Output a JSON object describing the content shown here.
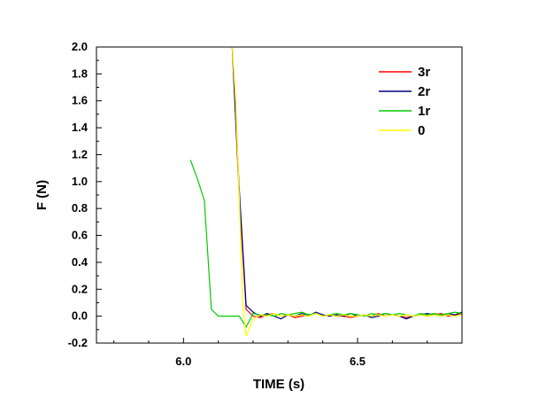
{
  "chart_data": {
    "type": "line",
    "title": "",
    "xlabel": "TIME (s)",
    "ylabel": "F (N)",
    "xlim": [
      5.75,
      6.8
    ],
    "ylim": [
      -0.2,
      2.0
    ],
    "xticks": [
      {
        "value": 6.0,
        "label": "6.0"
      },
      {
        "value": 6.5,
        "label": "6.5"
      }
    ],
    "xminor": [
      5.8,
      5.9,
      6.1,
      6.2,
      6.3,
      6.4,
      6.6,
      6.7
    ],
    "yticks": [
      {
        "value": -0.2,
        "label": "-0.2"
      },
      {
        "value": 0.0,
        "label": "0.0"
      },
      {
        "value": 0.2,
        "label": "0.2"
      },
      {
        "value": 0.4,
        "label": "0.4"
      },
      {
        "value": 0.6,
        "label": "0.6"
      },
      {
        "value": 0.8,
        "label": "0.8"
      },
      {
        "value": 1.0,
        "label": "1.0"
      },
      {
        "value": 1.2,
        "label": "1.2"
      },
      {
        "value": 1.4,
        "label": "1.4"
      },
      {
        "value": 1.6,
        "label": "1.6"
      },
      {
        "value": 1.8,
        "label": "1.8"
      },
      {
        "value": 2.0,
        "label": "2.0"
      }
    ],
    "grid": false,
    "legend_position": "top-right",
    "series": [
      {
        "name": "3r",
        "color": "#ff0000",
        "x": [
          6.14,
          6.16,
          6.18,
          6.2,
          6.22,
          6.24,
          6.26,
          6.28,
          6.3,
          6.32,
          6.34,
          6.36,
          6.38,
          6.4,
          6.42,
          6.44,
          6.46,
          6.48,
          6.5,
          6.52,
          6.54,
          6.56,
          6.58,
          6.6,
          6.62,
          6.64,
          6.66,
          6.68,
          6.7,
          6.72,
          6.74,
          6.76,
          6.78,
          6.8
        ],
        "y": [
          2.0,
          0.9,
          0.05,
          0.0,
          -0.01,
          0.01,
          0.02,
          0.0,
          0.01,
          -0.01,
          0.0,
          0.01,
          0.02,
          0.0,
          0.01,
          0.0,
          0.0,
          -0.01,
          0.0,
          0.01,
          0.0,
          0.02,
          0.0,
          0.01,
          0.0,
          -0.01,
          0.0,
          0.01,
          0.0,
          0.01,
          0.02,
          0.0,
          0.01,
          0.02
        ]
      },
      {
        "name": "2r",
        "color": "#000080",
        "x": [
          6.14,
          6.16,
          6.18,
          6.2,
          6.22,
          6.24,
          6.26,
          6.28,
          6.3,
          6.32,
          6.34,
          6.36,
          6.38,
          6.4,
          6.42,
          6.44,
          6.46,
          6.48,
          6.5,
          6.52,
          6.54,
          6.56,
          6.58,
          6.6,
          6.62,
          6.64,
          6.66,
          6.68,
          6.7,
          6.72,
          6.74,
          6.76,
          6.78,
          6.8
        ],
        "y": [
          2.0,
          0.95,
          0.08,
          0.03,
          0.0,
          0.02,
          0.0,
          -0.02,
          0.01,
          0.0,
          0.02,
          0.0,
          0.03,
          0.01,
          0.0,
          0.01,
          0.0,
          0.02,
          0.0,
          0.01,
          -0.01,
          0.0,
          0.02,
          0.01,
          0.0,
          -0.02,
          0.0,
          0.01,
          0.02,
          0.01,
          0.0,
          0.02,
          0.01,
          0.03
        ]
      },
      {
        "name": "1r",
        "color": "#00cc00",
        "x": [
          6.02,
          6.04,
          6.06,
          6.08,
          6.1,
          6.12,
          6.14,
          6.16,
          6.18,
          6.2,
          6.22,
          6.24,
          6.26,
          6.28,
          6.3,
          6.32,
          6.34,
          6.36,
          6.38,
          6.4,
          6.42,
          6.44,
          6.46,
          6.48,
          6.5,
          6.52,
          6.54,
          6.56,
          6.58,
          6.6,
          6.62,
          6.64,
          6.66,
          6.68,
          6.7,
          6.72,
          6.74,
          6.76,
          6.78,
          6.8
        ],
        "y": [
          1.16,
          1.02,
          0.86,
          0.05,
          0.0,
          0.0,
          0.0,
          0.0,
          -0.08,
          0.02,
          0.01,
          0.01,
          0.0,
          0.02,
          0.01,
          0.02,
          0.03,
          0.01,
          0.02,
          0.0,
          0.01,
          0.02,
          0.01,
          0.02,
          0.01,
          0.0,
          0.02,
          0.01,
          0.02,
          0.01,
          0.02,
          0.01,
          0.0,
          0.02,
          0.01,
          0.02,
          0.01,
          0.02,
          0.03,
          0.02
        ]
      },
      {
        "name": "0",
        "color": "#ffff00",
        "x": [
          6.14,
          6.15,
          6.16,
          6.17,
          6.18,
          6.2,
          6.22,
          6.24,
          6.26,
          6.28,
          6.3,
          6.32,
          6.34,
          6.36,
          6.38,
          6.4,
          6.42,
          6.44,
          6.46,
          6.48,
          6.5,
          6.52,
          6.54,
          6.56,
          6.58,
          6.6,
          6.62,
          6.64,
          6.66,
          6.68,
          6.7,
          6.72,
          6.74,
          6.76,
          6.78,
          6.8
        ],
        "y": [
          2.0,
          1.6,
          0.9,
          0.1,
          -0.15,
          -0.02,
          0.01,
          0.0,
          0.02,
          0.0,
          0.01,
          0.0,
          0.01,
          0.0,
          0.02,
          0.0,
          0.01,
          0.0,
          0.01,
          0.0,
          0.0,
          0.01,
          0.0,
          0.01,
          0.0,
          0.01,
          0.0,
          0.01,
          0.0,
          0.01,
          0.0,
          0.01,
          0.0,
          0.01,
          0.0,
          0.01
        ]
      }
    ]
  }
}
